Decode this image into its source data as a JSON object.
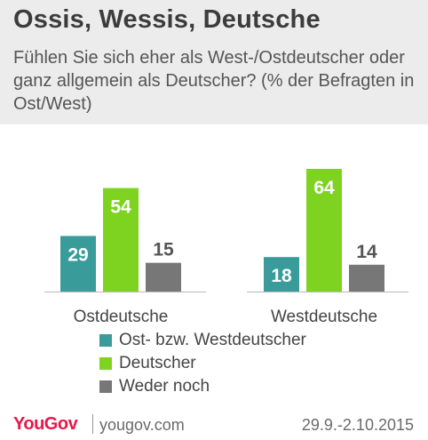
{
  "header": {
    "title": "Ossis, Wessis, Deutsche",
    "subtitle": "Fühlen Sie sich eher als West-/Ostdeutscher oder ganz allgemein als Deutscher? (% der Befragten in Ost/West)"
  },
  "chart_data": {
    "type": "bar",
    "categories": [
      "Ostdeutsche",
      "Westdeutsche"
    ],
    "series": [
      {
        "name": "Ost- bzw. Westdeutscher",
        "values": [
          29,
          18
        ],
        "color": "#3a9b9b"
      },
      {
        "name": "Deutscher",
        "values": [
          54,
          64
        ],
        "color": "#7ed321"
      },
      {
        "name": "Weder noch",
        "values": [
          15,
          14
        ],
        "color": "#777777"
      }
    ],
    "ylim": [
      0,
      64
    ],
    "grid": false,
    "legend_position": "bottom"
  },
  "footer": {
    "brand": "YouGov",
    "site": "yougov.com",
    "date": "29.9.-2.10.2015"
  }
}
